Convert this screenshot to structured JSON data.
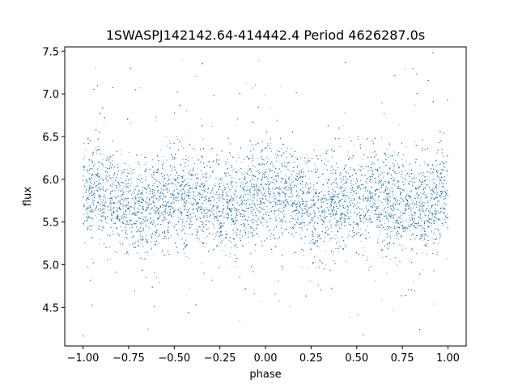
{
  "chart_data": {
    "type": "scatter",
    "title": "1SWASPJ142142.64-414442.4 Period 4626287.0s",
    "xlabel": "phase",
    "ylabel": "flux",
    "xlim": [
      -1.1,
      1.1
    ],
    "ylim": [
      4.05,
      7.55
    ],
    "x_ticks": [
      -1.0,
      -0.75,
      -0.5,
      -0.25,
      0.0,
      0.25,
      0.5,
      0.75,
      1.0
    ],
    "x_tick_labels": [
      "−1.00",
      "−0.75",
      "−0.50",
      "−0.25",
      "0.00",
      "0.25",
      "0.50",
      "0.75",
      "1.00"
    ],
    "y_ticks": [
      4.5,
      5.0,
      5.5,
      6.0,
      6.5,
      7.0,
      7.5
    ],
    "y_tick_labels": [
      "4.5",
      "5.0",
      "5.5",
      "6.0",
      "6.5",
      "7.0",
      "7.5"
    ],
    "grid": false,
    "marker_color": "#1f77b4",
    "series": [
      {
        "phase_range": [
          -1.0,
          1.0
        ],
        "median_flux_profile": {
          "phase": [
            -1.0,
            -0.9,
            -0.8,
            -0.7,
            -0.6,
            -0.5,
            -0.4,
            -0.3,
            -0.2,
            -0.1,
            0.0,
            0.1,
            0.2,
            0.3,
            0.4,
            0.5,
            0.6,
            0.7,
            0.8,
            0.9,
            1.0
          ],
          "flux": [
            5.9,
            5.85,
            5.72,
            5.65,
            5.7,
            5.75,
            5.78,
            5.72,
            5.68,
            5.72,
            5.9,
            5.85,
            5.72,
            5.65,
            5.7,
            5.75,
            5.78,
            5.72,
            5.68,
            5.72,
            5.9
          ]
        },
        "core_spread": 0.28,
        "full_range": [
          4.15,
          7.5
        ],
        "approx_points": 20000
      }
    ]
  }
}
